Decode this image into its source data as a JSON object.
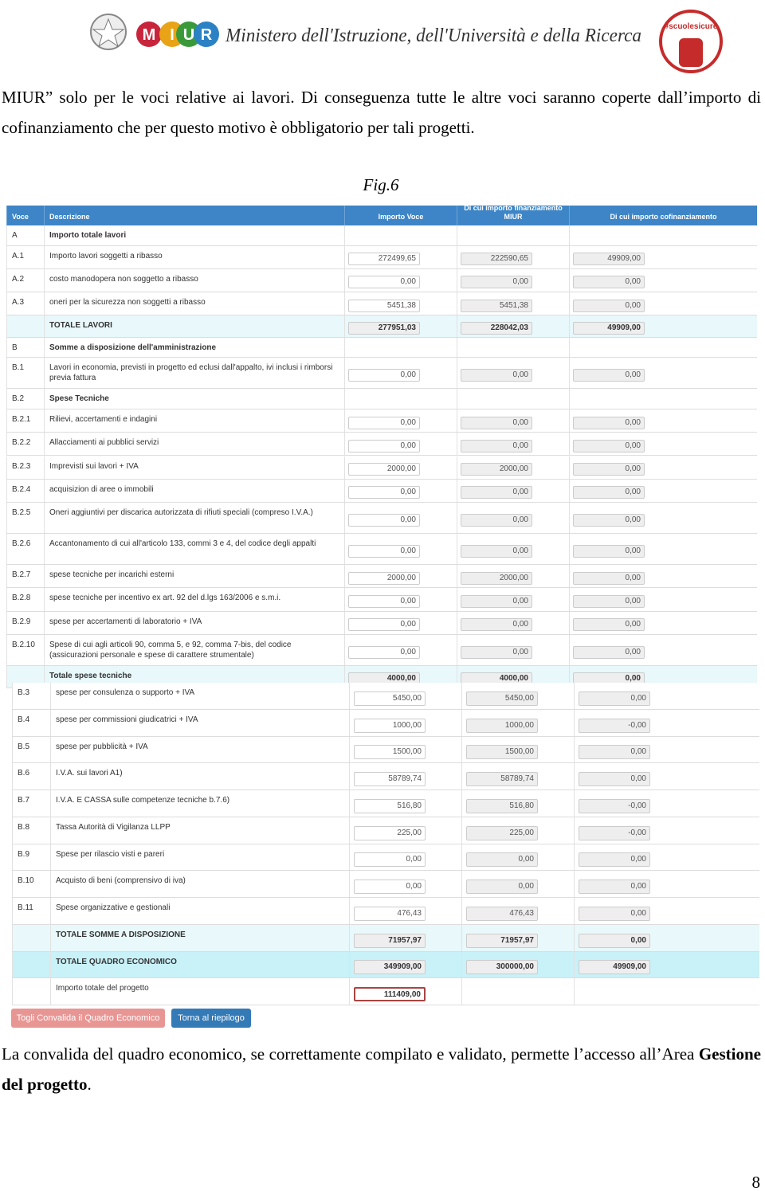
{
  "header": {
    "miur_letters": [
      "M",
      "I",
      "U",
      "R"
    ],
    "ministry": "Ministero dell'Istruzione, dell'Università e della Ricerca",
    "badge": "#scuolesicure"
  },
  "paragraph1": "MIUR” solo per le voci relative ai lavori. Di conseguenza tutte le altre voci saranno coperte dall’importo di cofinanziamento che per questo motivo è obbligatorio per tali progetti.",
  "caption": "Fig.6",
  "table": {
    "header": [
      "Voce",
      "Descrizione",
      "Importo Voce",
      "Di cui importo finanziamento MIUR",
      "Di cui importo cofinanziamento"
    ],
    "rows": [
      {
        "kind": "section",
        "voce": "A",
        "descrizione": "Importo totale lavori"
      },
      {
        "kind": "item",
        "voce": "A.1",
        "descrizione": "Importo lavori soggetti a ribasso",
        "values": [
          "272499,65",
          "222590,65",
          "49909,00"
        ]
      },
      {
        "kind": "item",
        "voce": "A.2",
        "descrizione": "costo manodopera non soggetto a ribasso",
        "values": [
          "0,00",
          "0,00",
          "0,00"
        ]
      },
      {
        "kind": "item",
        "voce": "A.3",
        "descrizione": "oneri per la sicurezza non soggetti a ribasso",
        "values": [
          "5451,38",
          "5451,38",
          "0,00"
        ]
      },
      {
        "kind": "total",
        "descrizione": "TOTALE LAVORI",
        "values": [
          "277951,03",
          "228042,03",
          "49909,00"
        ]
      },
      {
        "kind": "section",
        "voce": "B",
        "descrizione": "Somme a disposizione dell'amministrazione"
      },
      {
        "kind": "item",
        "voce": "B.1",
        "descrizione": "Lavori in economia, previsti in progetto ed eclusi dall'appalto, ivi inclusi i rimborsi previa fattura",
        "values": [
          "0,00",
          "0,00",
          "0,00"
        ]
      },
      {
        "kind": "section",
        "voce": "B.2",
        "descrizione": "Spese Tecniche"
      },
      {
        "kind": "item",
        "voce": "B.2.1",
        "descrizione": "Rilievi, accertamenti e indagini",
        "values": [
          "0,00",
          "0,00",
          "0,00"
        ]
      },
      {
        "kind": "item",
        "voce": "B.2.2",
        "descrizione": "Allacciamenti ai pubblici servizi",
        "values": [
          "0,00",
          "0,00",
          "0,00"
        ]
      },
      {
        "kind": "item",
        "voce": "B.2.3",
        "descrizione": "Imprevisti sui lavori + IVA",
        "values": [
          "2000,00",
          "2000,00",
          "0,00"
        ]
      },
      {
        "kind": "item",
        "voce": "B.2.4",
        "descrizione": "acquisizion di aree o immobili",
        "values": [
          "0,00",
          "0,00",
          "0,00"
        ]
      },
      {
        "kind": "item",
        "voce": "B.2.5",
        "descrizione": "Oneri aggiuntivi per discarica autorizzata di rifiuti speciali (compreso I.V.A.)",
        "values": [
          "0,00",
          "0,00",
          "0,00"
        ]
      },
      {
        "kind": "item",
        "voce": "B.2.6",
        "descrizione": "Accantonamento di cui all'articolo 133, commi 3 e 4, del codice degli appalti",
        "values": [
          "0,00",
          "0,00",
          "0,00"
        ]
      },
      {
        "kind": "item",
        "voce": "B.2.7",
        "descrizione": "spese tecniche per incarichi esterni",
        "values": [
          "2000,00",
          "2000,00",
          "0,00"
        ]
      },
      {
        "kind": "item",
        "voce": "B.2.8",
        "descrizione": "spese tecniche per incentivo ex art. 92 del d.lgs 163/2006 e s.m.i.",
        "values": [
          "0,00",
          "0,00",
          "0,00"
        ]
      },
      {
        "kind": "item",
        "voce": "B.2.9",
        "descrizione": "spese per accertamenti di laboratorio + IVA",
        "values": [
          "0,00",
          "0,00",
          "0,00"
        ]
      },
      {
        "kind": "item",
        "voce": "B.2.10",
        "descrizione": "Spese di cui agli articoli 90, comma 5, e 92, comma 7-bis, del codice (assicurazioni personale e spese di carattere strumentale)",
        "values": [
          "0,00",
          "0,00",
          "0,00"
        ]
      },
      {
        "kind": "total",
        "descrizione": "Totale spese tecniche",
        "values": [
          "4000,00",
          "4000,00",
          "0,00"
        ]
      }
    ]
  },
  "table_continued": {
    "rows": [
      {
        "kind": "item",
        "voce": "B.3",
        "descrizione": "spese per consulenza o supporto + IVA",
        "values": [
          "5450,00",
          "5450,00",
          "0,00"
        ]
      },
      {
        "kind": "item",
        "voce": "B.4",
        "descrizione": "spese per commissioni giudicatrici + IVA",
        "values": [
          "1000,00",
          "1000,00",
          "-0,00"
        ]
      },
      {
        "kind": "item",
        "voce": "B.5",
        "descrizione": "spese per pubblicità + IVA",
        "values": [
          "1500,00",
          "1500,00",
          "0,00"
        ]
      },
      {
        "kind": "item",
        "voce": "B.6",
        "descrizione": "I.V.A. sui lavori A1)",
        "values": [
          "58789,74",
          "58789,74",
          "0,00"
        ]
      },
      {
        "kind": "item",
        "voce": "B.7",
        "descrizione": "I.V.A. E CASSA sulle competenze tecniche b.7.6)",
        "values": [
          "516,80",
          "516,80",
          "-0,00"
        ]
      },
      {
        "kind": "item",
        "voce": "B.8",
        "descrizione": "Tassa Autorità di Vigilanza LLPP",
        "values": [
          "225,00",
          "225,00",
          "-0,00"
        ]
      },
      {
        "kind": "item",
        "voce": "B.9",
        "descrizione": "Spese per rilascio visti e pareri",
        "values": [
          "0,00",
          "0,00",
          "0,00"
        ]
      },
      {
        "kind": "item",
        "voce": "B.10",
        "descrizione": "Acquisto di beni (comprensivo di iva)",
        "values": [
          "0,00",
          "0,00",
          "0,00"
        ]
      },
      {
        "kind": "item",
        "voce": "B.11",
        "descrizione": "Spese organizzative e gestionali",
        "values": [
          "476,43",
          "476,43",
          "0,00"
        ]
      },
      {
        "kind": "total",
        "descrizione": "TOTALE SOMME A DISPOSIZIONE",
        "values": [
          "71957,97",
          "71957,97",
          "0,00"
        ]
      },
      {
        "kind": "grand",
        "descrizione": "TOTALE QUADRO ECONOMICO",
        "values": [
          "349909,00",
          "300000,00",
          "49909,00"
        ]
      },
      {
        "kind": "project",
        "descrizione": "Importo totale del progetto",
        "values": [
          "111409,00"
        ]
      }
    ],
    "buttons": [
      "Togli Convalida il Quadro Economico",
      "Torna al riepilogo"
    ]
  },
  "paragraph2": {
    "text": "La convalida del quadro economico, se correttamente compilato e validato, permette l’accesso all’Area ",
    "bold": "Gestione del progetto",
    "end": "."
  },
  "page_number": "8"
}
